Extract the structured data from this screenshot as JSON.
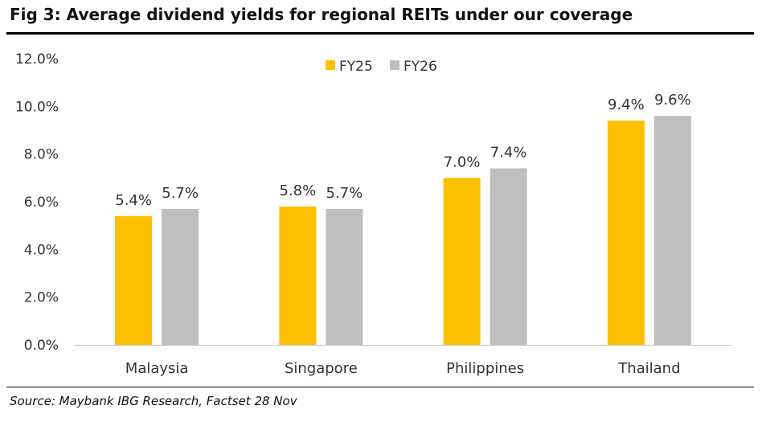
{
  "figure": {
    "title": "Fig 3: Average dividend yields for regional REITs under our coverage",
    "source": "Source: Maybank IBG Research, Factset 28 Nov"
  },
  "colors": {
    "fy25": "#FFC000",
    "fy26": "#BFBFBF",
    "axis": "#BFBFBF",
    "text": "#333333"
  },
  "chart_data": {
    "type": "bar",
    "categories": [
      "Malaysia",
      "Singapore",
      "Philippines",
      "Thailand"
    ],
    "series": [
      {
        "name": "FY25",
        "values": [
          5.4,
          5.8,
          7.0,
          9.4
        ],
        "labels": [
          "5.4%",
          "5.8%",
          "7.0%",
          "9.4%"
        ]
      },
      {
        "name": "FY26",
        "values": [
          5.7,
          5.7,
          7.4,
          9.6
        ],
        "labels": [
          "5.7%",
          "5.7%",
          "7.4%",
          "9.6%"
        ]
      }
    ],
    "y_ticks": [
      "0.0%",
      "2.0%",
      "4.0%",
      "6.0%",
      "8.0%",
      "10.0%",
      "12.0%"
    ],
    "ylim": [
      0,
      12
    ],
    "grid": false,
    "legend": "top-center"
  }
}
